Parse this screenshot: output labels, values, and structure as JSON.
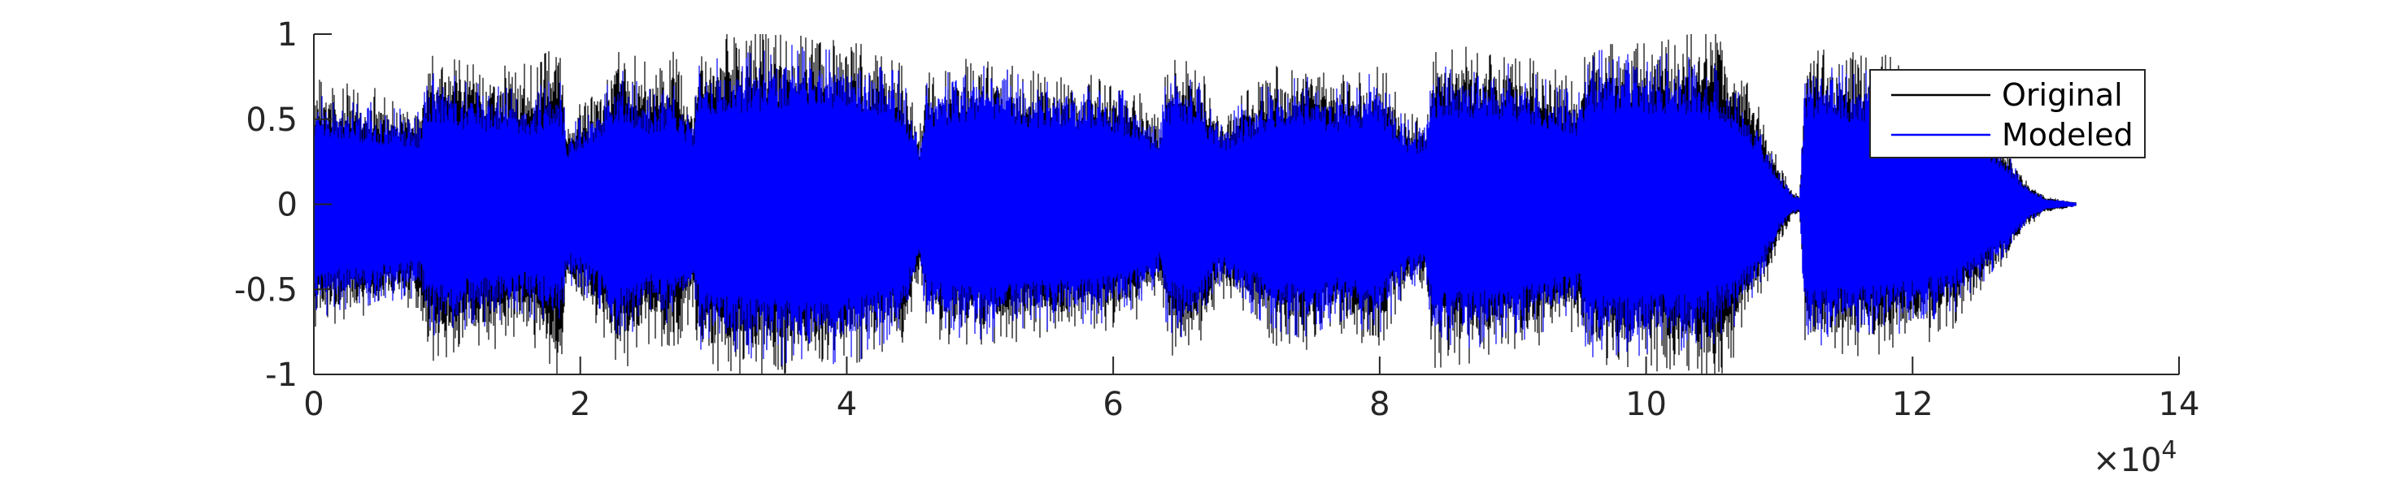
{
  "chart_data": {
    "type": "line",
    "title": "",
    "xlabel": "",
    "ylabel": "",
    "xlim": [
      0,
      140000
    ],
    "ylim": [
      -1,
      1
    ],
    "x_exponent_label": "×10",
    "x_exponent_power": "4",
    "xtick_values": [
      0,
      20000,
      40000,
      60000,
      80000,
      100000,
      120000,
      140000
    ],
    "xtick_labels": [
      "0",
      "2",
      "4",
      "6",
      "8",
      "10",
      "12",
      "14"
    ],
    "ytick_values": [
      1,
      0.5,
      0,
      -0.5,
      -1
    ],
    "ytick_labels": [
      "1",
      "0.5",
      "0",
      "-0.5",
      "-1"
    ],
    "grid": false,
    "legend_position": "top-right",
    "signal_end": 132300,
    "series": [
      {
        "name": "Original",
        "color": "#000000",
        "envelope_x": [
          0,
          4000,
          8000,
          8600,
          12000,
          16000,
          18500,
          19000,
          21000,
          23000,
          25000,
          27000,
          28500,
          29000,
          33000,
          37000,
          41000,
          44000,
          45500,
          46000,
          50000,
          54000,
          60000,
          62000,
          63500,
          64000,
          66000,
          68000,
          72000,
          75000,
          76000,
          80000,
          82000,
          83500,
          84000,
          88000,
          91000,
          95000,
          95600,
          99000,
          103000,
          105000,
          107000,
          109000,
          110000,
          111000,
          111500,
          112000,
          116000,
          120000,
          123000,
          125000,
          127000,
          128500,
          130000,
          132300
        ],
        "envelope": [
          0.62,
          0.58,
          0.52,
          0.78,
          0.72,
          0.68,
          0.88,
          0.45,
          0.55,
          0.82,
          0.68,
          0.75,
          0.52,
          0.82,
          0.85,
          0.82,
          0.78,
          0.72,
          0.38,
          0.65,
          0.72,
          0.65,
          0.62,
          0.55,
          0.42,
          0.72,
          0.76,
          0.45,
          0.68,
          0.72,
          0.62,
          0.7,
          0.45,
          0.42,
          0.8,
          0.78,
          0.72,
          0.6,
          0.82,
          0.8,
          0.82,
          0.94,
          0.7,
          0.4,
          0.2,
          0.06,
          0.05,
          0.78,
          0.74,
          0.7,
          0.62,
          0.45,
          0.3,
          0.12,
          0.04,
          0.01
        ]
      },
      {
        "name": "Modeled",
        "color": "#0000ff",
        "envelope_x": [
          0,
          4000,
          8000,
          8600,
          12000,
          16000,
          18500,
          19000,
          21000,
          23000,
          25000,
          27000,
          28500,
          29000,
          33000,
          37000,
          41000,
          44000,
          45500,
          46000,
          50000,
          54000,
          60000,
          62000,
          63500,
          64000,
          66000,
          68000,
          72000,
          75000,
          76000,
          80000,
          82000,
          83500,
          84000,
          88000,
          91000,
          95000,
          95600,
          99000,
          103000,
          105000,
          107000,
          109000,
          110000,
          111000,
          111500,
          112000,
          116000,
          120000,
          123000,
          125000,
          127000,
          128500,
          130000,
          132300
        ],
        "envelope": [
          0.55,
          0.5,
          0.45,
          0.65,
          0.6,
          0.55,
          0.62,
          0.38,
          0.48,
          0.68,
          0.55,
          0.6,
          0.45,
          0.72,
          0.75,
          0.8,
          0.75,
          0.66,
          0.34,
          0.62,
          0.68,
          0.62,
          0.58,
          0.5,
          0.38,
          0.62,
          0.66,
          0.4,
          0.62,
          0.66,
          0.58,
          0.64,
          0.42,
          0.38,
          0.7,
          0.7,
          0.66,
          0.55,
          0.75,
          0.74,
          0.72,
          0.68,
          0.58,
          0.32,
          0.15,
          0.05,
          0.04,
          0.7,
          0.66,
          0.62,
          0.55,
          0.4,
          0.26,
          0.1,
          0.03,
          0.01
        ]
      }
    ]
  }
}
